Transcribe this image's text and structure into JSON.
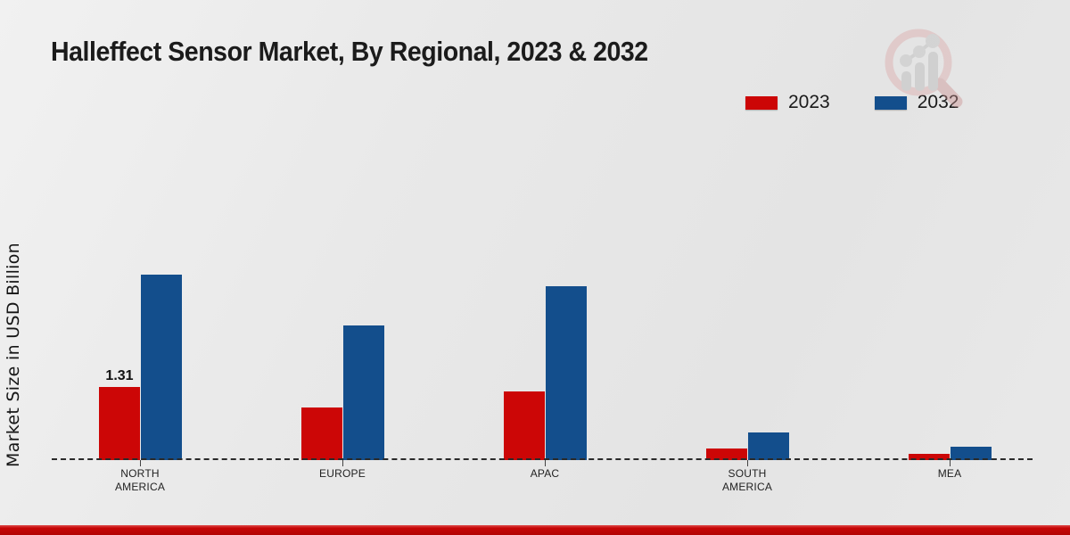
{
  "title": "Halleffect Sensor Market, By Regional, 2023 & 2032",
  "ylabel": "Market Size in USD Billion",
  "legend": [
    {
      "label": "2023",
      "color": "#cc0606"
    },
    {
      "label": "2032",
      "color": "#134e8c"
    }
  ],
  "watermark_icon": "market-research-magnifier-logo",
  "footer_color": "#c60606",
  "chart_data": {
    "type": "bar",
    "title": "Halleffect Sensor Market, By Regional, 2023 & 2032",
    "xlabel": "",
    "ylabel": "Market Size in USD Billion",
    "categories": [
      "NORTH AMERICA",
      "EUROPE",
      "APAC",
      "SOUTH AMERICA",
      "MEA"
    ],
    "series": [
      {
        "name": "2023",
        "color": "#cc0606",
        "values": [
          1.31,
          0.94,
          1.23,
          0.21,
          0.11
        ]
      },
      {
        "name": "2032",
        "color": "#134e8c",
        "values": [
          3.32,
          2.41,
          3.12,
          0.5,
          0.24
        ]
      }
    ],
    "annotations": [
      {
        "series": "2023",
        "category": "NORTH AMERICA",
        "text": "1.31"
      }
    ],
    "ylim": [
      0,
      3.6
    ],
    "baseline_style": "dashed",
    "grid": false,
    "legend_position": "top-right"
  }
}
